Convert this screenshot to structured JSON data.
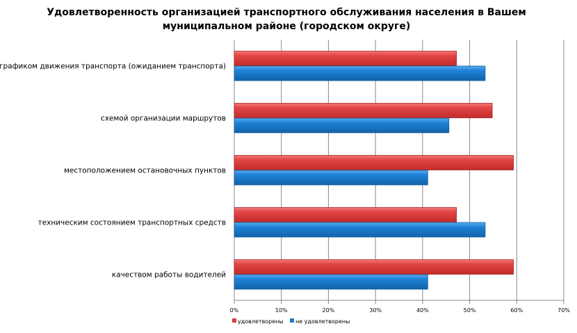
{
  "chart_data": {
    "type": "bar",
    "orientation": "horizontal",
    "title_lines": [
      "Удовлетворенность организацией транспортного обслуживания  населения в Вашем",
      "муниципальном районе (городском округе)"
    ],
    "categories": [
      "графиком движения транспорта (ожиданием транспорта)",
      "схемой организации маршрутов",
      "местоположением остановочных пунктов",
      "техническим состоянием транспортных средств",
      "качеством работы водителей"
    ],
    "series": [
      {
        "name": "удовлетворены",
        "color": "#e03c3c",
        "values": [
          47.2,
          54.8,
          59.3,
          47.2,
          59.3
        ]
      },
      {
        "name": "не удовлетворены",
        "color": "#1a7ad0",
        "values": [
          53.3,
          45.6,
          41.1,
          53.3,
          41.1
        ]
      }
    ],
    "xlim": [
      0,
      70
    ],
    "x_ticks": [
      "0%",
      "10%",
      "20%",
      "30%",
      "40%",
      "50%",
      "60%",
      "70%"
    ],
    "grid": true,
    "legend_placement": "bottom-left"
  }
}
